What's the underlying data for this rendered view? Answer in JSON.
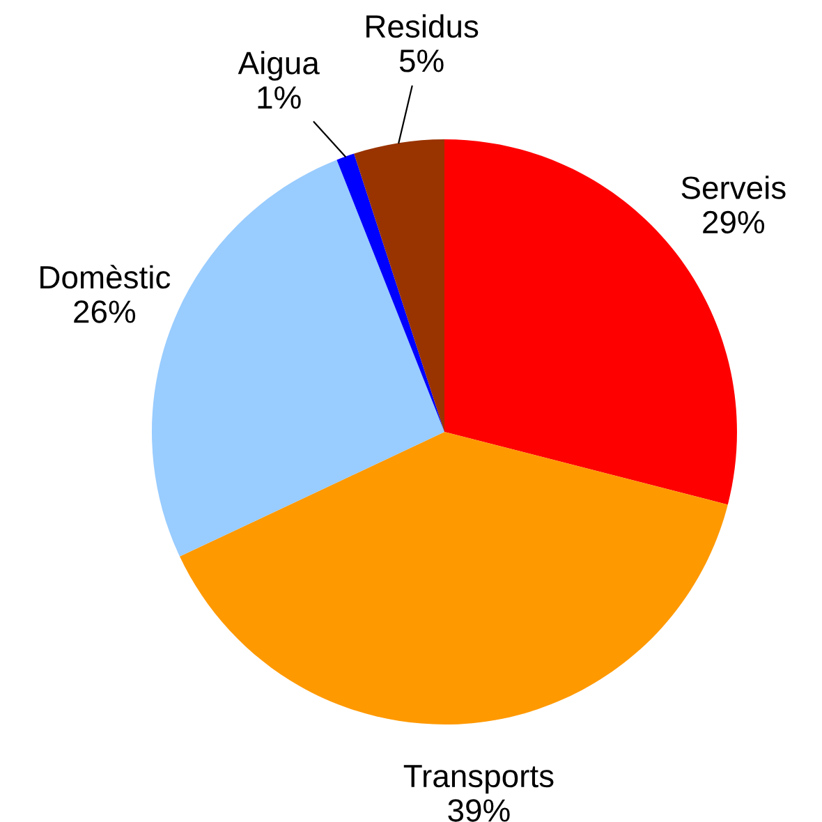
{
  "chart_data": {
    "type": "pie",
    "categories": [
      "Serveis",
      "Transports",
      "Domèstic",
      "Aigua",
      "Residus"
    ],
    "values": [
      29,
      39,
      26,
      1,
      5
    ],
    "value_labels": [
      "29%",
      "39%",
      "26%",
      "1%",
      "5%"
    ],
    "colors": [
      "#ff0000",
      "#ff9900",
      "#99ccff",
      "#0000ff",
      "#993300"
    ],
    "legend": false
  }
}
